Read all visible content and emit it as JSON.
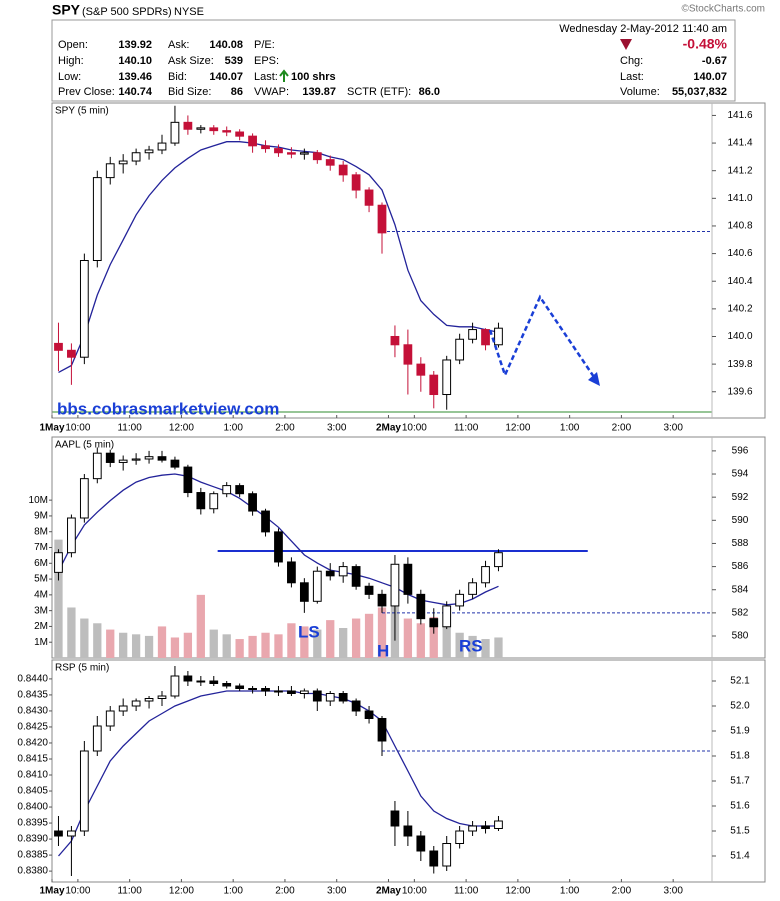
{
  "quote": {
    "symbol": "SPY",
    "name": "(S&P 500 SPDRs)",
    "exchange": "NYSE",
    "datetime": "Wednesday  2-May-2012  11:40 am",
    "change_pct": "-0.48%",
    "fields": [
      {
        "label": "Open:",
        "value": "139.92"
      },
      {
        "label": "High:",
        "value": "140.10"
      },
      {
        "label": "Low:",
        "value": "139.46"
      },
      {
        "label": "Prev Close:",
        "value": "140.74"
      },
      {
        "label": "Ask:",
        "value": "140.08"
      },
      {
        "label": "Ask Size:",
        "value": "539"
      },
      {
        "label": "Bid:",
        "value": "140.07"
      },
      {
        "label": "Bid Size:",
        "value": "86"
      },
      {
        "label": "P/E:"
      },
      {
        "label": "EPS:"
      },
      {
        "label": "Last:",
        "value": "100 shrs"
      },
      {
        "label": "VWAP:",
        "value": "139.87"
      },
      {
        "label": "SCTR (ETF):",
        "value": "86.0"
      },
      {
        "label": "Chg:",
        "value": "-0.67"
      },
      {
        "label": "Last:",
        "value": "140.07"
      },
      {
        "label": "Volume:",
        "value": "55,037,832"
      }
    ],
    "copyright": "©StockCharts.com",
    "watermark": "bbs.cobrasmarketview.com"
  },
  "chart_data": [
    {
      "type": "candlestick",
      "title": "SPY (5 min)",
      "categories": [
        "1May",
        null,
        "10:00",
        null,
        null,
        null,
        "11:00",
        null,
        null,
        null,
        "12:00",
        null,
        null,
        null,
        "1:00",
        null,
        null,
        null,
        "2:00",
        null,
        null,
        null,
        "3:00",
        null,
        null,
        null,
        "2May",
        null,
        "10:00",
        null,
        null,
        null,
        "11:00",
        null,
        null,
        null,
        "12:00",
        null,
        null,
        null,
        "1:00",
        null,
        null,
        null,
        "2:00",
        null,
        null,
        null,
        "3:00",
        null,
        null
      ],
      "open": [
        139.95,
        139.9,
        139.85,
        140.55,
        141.15,
        141.25,
        141.27,
        141.33,
        141.35,
        141.4,
        141.55,
        141.5,
        141.51,
        141.49,
        141.48,
        141.45,
        141.38,
        141.36,
        141.33,
        141.32,
        141.33,
        141.28,
        141.24,
        141.17,
        141.06,
        140.95,
        140.0,
        139.94,
        139.8,
        139.72,
        139.58,
        139.83,
        139.98,
        140.05,
        139.94,
        null,
        null,
        null,
        null,
        null,
        null,
        null,
        null,
        null,
        null,
        null,
        null,
        null,
        null,
        null,
        null
      ],
      "high": [
        140.1,
        139.95,
        140.6,
        141.2,
        141.3,
        141.32,
        141.36,
        141.38,
        141.46,
        141.67,
        141.6,
        141.53,
        141.53,
        141.52,
        141.5,
        141.47,
        141.42,
        141.39,
        141.37,
        141.36,
        141.35,
        141.31,
        141.27,
        141.19,
        141.08,
        140.97,
        140.08,
        140.05,
        139.85,
        139.75,
        139.86,
        140.02,
        140.1,
        140.06,
        140.1,
        null,
        null,
        null,
        null,
        null,
        null,
        null,
        null,
        null,
        null,
        null,
        null,
        null,
        null,
        null,
        null
      ],
      "low": [
        139.75,
        139.65,
        139.8,
        140.5,
        141.1,
        141.18,
        141.24,
        141.28,
        141.32,
        141.38,
        141.46,
        141.47,
        141.46,
        141.45,
        141.42,
        141.33,
        141.33,
        141.3,
        141.29,
        141.28,
        141.25,
        141.2,
        141.12,
        141.0,
        140.9,
        140.6,
        139.85,
        139.58,
        139.6,
        139.48,
        139.47,
        139.8,
        139.95,
        139.9,
        139.92,
        null,
        null,
        null,
        null,
        null,
        null,
        null,
        null,
        null,
        null,
        null,
        null,
        null,
        null,
        null,
        null
      ],
      "close": [
        139.9,
        139.85,
        140.55,
        141.15,
        141.25,
        141.27,
        141.33,
        141.35,
        141.4,
        141.55,
        141.5,
        141.51,
        141.49,
        141.48,
        141.45,
        141.38,
        141.36,
        141.33,
        141.32,
        141.33,
        141.28,
        141.24,
        141.17,
        141.06,
        140.95,
        140.75,
        139.94,
        139.8,
        139.72,
        139.58,
        139.83,
        139.98,
        140.05,
        139.94,
        140.06,
        null,
        null,
        null,
        null,
        null,
        null,
        null,
        null,
        null,
        null,
        null,
        null,
        null,
        null,
        null,
        null
      ],
      "ma": [
        139.74,
        139.79,
        140.01,
        140.3,
        140.52,
        140.7,
        140.88,
        141.02,
        141.13,
        141.22,
        141.29,
        141.35,
        141.38,
        141.41,
        141.41,
        141.4,
        141.38,
        141.37,
        141.35,
        141.34,
        141.33,
        141.3,
        141.28,
        141.23,
        141.17,
        141.06,
        140.81,
        140.48,
        140.26,
        140.16,
        140.08,
        140.07,
        140.07,
        140.05,
        140.03,
        null,
        null,
        null,
        null,
        null,
        null,
        null,
        null,
        null,
        null,
        null,
        null,
        null,
        null,
        null,
        null
      ],
      "ma_color": "#23239a",
      "up_color": "#ffffff",
      "down_color": "#c41038",
      "ref_line": 140.76,
      "ref_color": "#2233aa",
      "ylim": [
        139.41,
        141.69
      ],
      "yticks": [
        141.6,
        141.4,
        141.2,
        {
          "value": 141,
          "label": "141.0"
        },
        140.8,
        140.6,
        140.4,
        140.2,
        {
          "value": 140,
          "label": "140.0"
        },
        139.8,
        139.6
      ]
    },
    {
      "type": "candlestick",
      "title": "AAPL (5 min)",
      "open": [
        585.5,
        587.2,
        590.2,
        593.6,
        595.8,
        595.0,
        595.2,
        595.3,
        595.5,
        595.2,
        594.6,
        592.4,
        591.0,
        592.3,
        593.0,
        592.3,
        590.8,
        589.0,
        586.4,
        584.6,
        583.0,
        585.6,
        585.2,
        586.0,
        584.3,
        583.6,
        582.6,
        586.2,
        583.6,
        581.5,
        580.8,
        582.6,
        583.6,
        584.6,
        586.0,
        null,
        null,
        null,
        null,
        null,
        null,
        null,
        null,
        null,
        null,
        null,
        null,
        null,
        null,
        null,
        null
      ],
      "high": [
        587.5,
        590.5,
        594.0,
        596.3,
        596.1,
        595.6,
        595.8,
        596.0,
        596.0,
        595.5,
        594.8,
        592.8,
        592.5,
        593.3,
        593.2,
        592.5,
        591.0,
        589.3,
        586.8,
        585.0,
        586.0,
        586.3,
        586.4,
        586.2,
        584.6,
        584.0,
        587.0,
        586.8,
        584.0,
        582.4,
        583.0,
        584.0,
        585.0,
        586.5,
        587.5,
        null,
        null,
        null,
        null,
        null,
        null,
        null,
        null,
        null,
        null,
        null,
        null,
        null,
        null,
        null,
        null
      ],
      "low": [
        584.8,
        586.8,
        589.8,
        593.2,
        594.6,
        594.3,
        594.8,
        594.9,
        595.0,
        594.4,
        592.0,
        590.5,
        590.6,
        592.0,
        592.0,
        590.4,
        588.6,
        586.0,
        584.2,
        582.0,
        582.8,
        584.8,
        584.6,
        584.0,
        583.2,
        582.0,
        579.6,
        582.8,
        581.0,
        580.2,
        580.6,
        582.2,
        583.2,
        584.2,
        585.6,
        null,
        null,
        null,
        null,
        null,
        null,
        null,
        null,
        null,
        null,
        null,
        null,
        null,
        null,
        null,
        null
      ],
      "close": [
        587.2,
        590.2,
        593.6,
        595.8,
        595.0,
        595.2,
        595.3,
        595.5,
        595.2,
        594.6,
        592.4,
        591.0,
        592.3,
        593.0,
        592.3,
        590.8,
        589.0,
        586.4,
        584.6,
        583.0,
        585.6,
        585.2,
        586.0,
        584.3,
        583.6,
        582.6,
        586.2,
        583.6,
        581.5,
        580.8,
        582.6,
        583.6,
        584.6,
        586.0,
        587.2,
        null,
        null,
        null,
        null,
        null,
        null,
        null,
        null,
        null,
        null,
        null,
        null,
        null,
        null,
        null,
        null
      ],
      "ma": [
        585.6,
        587.8,
        589.6,
        590.7,
        591.7,
        592.6,
        593.3,
        593.7,
        593.9,
        594.0,
        593.8,
        593.3,
        592.9,
        592.5,
        591.9,
        591.1,
        590.3,
        589.4,
        588.2,
        587.0,
        586.3,
        585.7,
        585.5,
        585.3,
        585.0,
        584.6,
        584.2,
        583.6,
        583.1,
        582.9,
        582.7,
        582.8,
        583.2,
        583.8,
        584.3,
        null,
        null,
        null,
        null,
        null,
        null,
        null,
        null,
        null,
        null,
        null,
        null,
        null,
        null,
        null,
        null
      ],
      "volume": [
        7500000,
        3200000,
        2500000,
        2200000,
        1800000,
        1600000,
        1500000,
        1400000,
        2000000,
        1300000,
        1600000,
        4000000,
        1800000,
        1500000,
        1200000,
        1400000,
        1600000,
        1500000,
        2200000,
        2000000,
        1800000,
        2400000,
        1900000,
        2500000,
        2800000,
        3200000,
        4500000,
        2500000,
        2200000,
        2600000,
        2000000,
        1600000,
        1400000,
        1200000,
        1300000,
        null,
        null,
        null,
        null,
        null,
        null,
        null,
        null,
        null,
        null,
        null,
        null,
        null,
        null,
        null,
        null
      ],
      "volume_up_color": "#bdbdbd",
      "volume_down_color": "#e9a7ae",
      "ma_color": "#23239a",
      "up_color": "#ffffff",
      "down_color": "#000000",
      "ref_line": 582.0,
      "ref_color": "#2233aa",
      "neckline": 587.35,
      "neckline_color": "#1a2fd0",
      "annotations": [
        "LS",
        "H",
        "RS"
      ],
      "ylim": [
        578.1,
        597.2
      ],
      "yticks": [
        596,
        594,
        592,
        590,
        588,
        586,
        584,
        582,
        580
      ],
      "y2lim": [
        0,
        14000000
      ],
      "y2ticks": [
        {
          "value": 10000000,
          "label": "10M"
        },
        {
          "value": 9000000,
          "label": "9M"
        },
        {
          "value": 8000000,
          "label": "8M"
        },
        {
          "value": 7000000,
          "label": "7M"
        },
        {
          "value": 6000000,
          "label": "6M"
        },
        {
          "value": 5000000,
          "label": "5M"
        },
        {
          "value": 4000000,
          "label": "4M"
        },
        {
          "value": 3000000,
          "label": "3M"
        },
        {
          "value": 2000000,
          "label": "2M"
        },
        {
          "value": 1000000,
          "label": "1M"
        }
      ]
    },
    {
      "type": "candlestick",
      "title": "RSP (5 min)",
      "categories": [
        "1May",
        null,
        "10:00",
        null,
        null,
        null,
        "11:00",
        null,
        null,
        null,
        "12:00",
        null,
        null,
        null,
        "1:00",
        null,
        null,
        null,
        "2:00",
        null,
        null,
        null,
        "3:00",
        null,
        null,
        null,
        "2May",
        null,
        "10:00",
        null,
        null,
        null,
        "11:00",
        null,
        null,
        null,
        "12:00",
        null,
        null,
        null,
        "1:00",
        null,
        null,
        null,
        "2:00",
        null,
        null,
        null,
        "3:00",
        null,
        null
      ],
      "open": [
        51.5,
        51.48,
        51.5,
        51.82,
        51.92,
        51.98,
        52.0,
        52.02,
        52.03,
        52.04,
        52.12,
        52.1,
        52.1,
        52.09,
        52.08,
        52.07,
        52.07,
        52.06,
        52.06,
        52.05,
        52.06,
        52.02,
        52.05,
        52.02,
        51.98,
        51.95,
        51.58,
        51.52,
        51.48,
        51.42,
        51.36,
        51.45,
        51.5,
        51.52,
        51.51,
        null,
        null,
        null,
        null,
        null,
        null,
        null,
        null,
        null,
        null,
        null,
        null,
        null,
        null,
        null,
        null
      ],
      "high": [
        51.56,
        51.52,
        51.86,
        51.96,
        52.0,
        52.03,
        52.03,
        52.04,
        52.06,
        52.16,
        52.14,
        52.12,
        52.12,
        52.1,
        52.09,
        52.08,
        52.08,
        52.08,
        52.08,
        52.07,
        52.07,
        52.06,
        52.06,
        52.03,
        52.0,
        51.96,
        51.62,
        51.58,
        51.5,
        51.44,
        51.48,
        51.52,
        51.54,
        51.54,
        51.56,
        null,
        null,
        null,
        null,
        null,
        null,
        null,
        null,
        null,
        null,
        null,
        null,
        null,
        null,
        null,
        null
      ],
      "low": [
        51.44,
        51.32,
        51.48,
        51.8,
        51.9,
        51.96,
        51.98,
        51.99,
        52.0,
        52.03,
        52.08,
        52.08,
        52.08,
        52.07,
        52.06,
        52.05,
        52.04,
        52.04,
        52.04,
        52.03,
        51.98,
        52.0,
        52.01,
        51.96,
        51.93,
        51.8,
        51.44,
        51.44,
        51.38,
        51.33,
        51.34,
        51.43,
        51.48,
        51.49,
        51.5,
        null,
        null,
        null,
        null,
        null,
        null,
        null,
        null,
        null,
        null,
        null,
        null,
        null,
        null,
        null,
        null
      ],
      "close": [
        51.48,
        51.5,
        51.82,
        51.92,
        51.98,
        52.0,
        52.02,
        52.03,
        52.04,
        52.12,
        52.1,
        52.1,
        52.09,
        52.08,
        52.07,
        52.07,
        52.06,
        52.06,
        52.05,
        52.06,
        52.02,
        52.05,
        52.02,
        51.98,
        51.95,
        51.86,
        51.52,
        51.48,
        51.42,
        51.36,
        51.45,
        51.5,
        51.52,
        51.51,
        51.54,
        null,
        null,
        null,
        null,
        null,
        null,
        null,
        null,
        null,
        null,
        null,
        null,
        null,
        null,
        null,
        null
      ],
      "ma": [
        51.4,
        51.46,
        51.58,
        51.68,
        51.78,
        51.84,
        51.89,
        51.94,
        51.97,
        52.0,
        52.02,
        52.04,
        52.05,
        52.06,
        52.06,
        52.06,
        52.06,
        52.06,
        52.06,
        52.05,
        52.05,
        52.04,
        52.03,
        52.01,
        51.98,
        51.94,
        51.84,
        51.74,
        51.64,
        51.58,
        51.55,
        51.53,
        51.52,
        51.52,
        51.52,
        null,
        null,
        null,
        null,
        null,
        null,
        null,
        null,
        null,
        null,
        null,
        null,
        null,
        null,
        null,
        null
      ],
      "ma_color": "#23239a",
      "up_color": "#ffffff",
      "down_color": "#000000",
      "ref_line": 51.82,
      "ref_color": "#2233aa",
      "ylim": [
        51.296,
        52.184
      ],
      "yticks": [
        52.1,
        {
          "value": 52,
          "label": "52.0"
        },
        51.9,
        51.8,
        51.7,
        51.6,
        51.5,
        51.4
      ],
      "y2lim": [
        0.83766,
        0.84459
      ],
      "y2ticks": [
        {
          "value": 0.844,
          "label": "0.8440"
        },
        0.8435,
        {
          "value": 0.843,
          "label": "0.8430"
        },
        0.8425,
        {
          "value": 0.842,
          "label": "0.8420"
        },
        0.8415,
        {
          "value": 0.841,
          "label": "0.8410"
        },
        0.8405,
        {
          "value": 0.84,
          "label": "0.8400"
        },
        0.8395,
        {
          "value": 0.839,
          "label": "0.8390"
        },
        0.8385,
        {
          "value": 0.838,
          "label": "0.8380"
        }
      ]
    }
  ]
}
